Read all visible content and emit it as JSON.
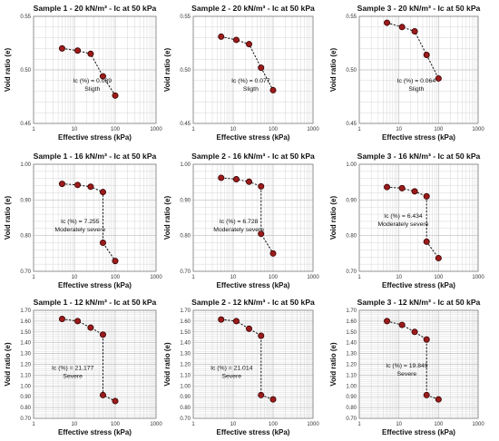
{
  "colors": {
    "marker": "#9b1b1b",
    "marker_edge": "#3a0000",
    "connector": "#111111",
    "grid": "#cccccc"
  },
  "chart_data": [
    {
      "type": "scatter",
      "title": "Sample 1 - 20 kN/m³ - Ic at 50 kPa",
      "xlabel": "Effective stress (kPa)",
      "ylabel": "Void ratio (e)",
      "xscale": "log",
      "xlim": [
        1,
        1000
      ],
      "ylim": [
        0.45,
        0.55
      ],
      "yticks": [
        0.45,
        0.5,
        0.55
      ],
      "ytick_decimals": 2,
      "grid": true,
      "x": [
        5,
        12,
        25,
        50,
        100
      ],
      "y": [
        0.52,
        0.518,
        0.515,
        0.494,
        0.476
      ],
      "annotation": [
        "Ic (%) = 0.039",
        "Sligth"
      ]
    },
    {
      "type": "scatter",
      "title": "Sample 2 - 20 kN/m³ - Ic at 50 kPa",
      "xlabel": "Effective stress (kPa)",
      "ylabel": "Void ratio (e)",
      "xscale": "log",
      "xlim": [
        1,
        1000
      ],
      "ylim": [
        0.45,
        0.55
      ],
      "yticks": [
        0.45,
        0.5,
        0.55
      ],
      "ytick_decimals": 2,
      "grid": true,
      "x": [
        5,
        12,
        25,
        50,
        100
      ],
      "y": [
        0.531,
        0.528,
        0.524,
        0.502,
        0.481
      ],
      "annotation": [
        "Ic (%) = 0.077",
        "Sligth"
      ]
    },
    {
      "type": "scatter",
      "title": "Sample 3 - 20 kN/m³ - Ic at 50 kPa",
      "xlabel": "Effective stress (kPa)",
      "ylabel": "Void ratio (e)",
      "xscale": "log",
      "xlim": [
        1,
        1000
      ],
      "ylim": [
        0.45,
        0.55
      ],
      "yticks": [
        0.45,
        0.5,
        0.55
      ],
      "ytick_decimals": 2,
      "grid": true,
      "x": [
        5,
        12,
        25,
        50,
        100
      ],
      "y": [
        0.544,
        0.54,
        0.536,
        0.514,
        0.492
      ],
      "annotation": [
        "Ic (%) = 0.064",
        "Sligth"
      ]
    },
    {
      "type": "scatter",
      "title": "Sample 1 - 16 kN/m³ - Ic at 50 kPa",
      "xlabel": "Effective stress (kPa)",
      "ylabel": "Void ratio (e)",
      "xscale": "log",
      "xlim": [
        1,
        1000
      ],
      "ylim": [
        0.7,
        1.0
      ],
      "yticks": [
        0.7,
        0.8,
        0.9,
        1.0
      ],
      "ytick_decimals": 2,
      "grid": true,
      "x": [
        5,
        12,
        25,
        50,
        50,
        100
      ],
      "y": [
        0.945,
        0.942,
        0.937,
        0.922,
        0.78,
        0.729
      ],
      "annotation": [
        "Ic (%) = 7.255",
        "Moderately severe"
      ]
    },
    {
      "type": "scatter",
      "title": "Sample 2 - 16 kN/m³ - Ic at 50 kPa",
      "xlabel": "Effective stress (kPa)",
      "ylabel": "Void ratio (e)",
      "xscale": "log",
      "xlim": [
        1,
        1000
      ],
      "ylim": [
        0.7,
        1.0
      ],
      "yticks": [
        0.7,
        0.8,
        0.9,
        1.0
      ],
      "ytick_decimals": 2,
      "grid": true,
      "x": [
        5,
        12,
        25,
        50,
        50,
        100
      ],
      "y": [
        0.962,
        0.958,
        0.951,
        0.938,
        0.805,
        0.75
      ],
      "annotation": [
        "Ic (%) = 6.728",
        "Moderately severe"
      ]
    },
    {
      "type": "scatter",
      "title": "Sample 3 - 16 kN/m³ - Ic at 50 kPa",
      "xlabel": "Effective stress (kPa)",
      "ylabel": "Void ratio (e)",
      "xscale": "log",
      "xlim": [
        1,
        1000
      ],
      "ylim": [
        0.7,
        1.0
      ],
      "yticks": [
        0.7,
        0.8,
        0.9,
        1.0
      ],
      "ytick_decimals": 2,
      "grid": true,
      "x": [
        5,
        12,
        25,
        50,
        50,
        100
      ],
      "y": [
        0.936,
        0.933,
        0.924,
        0.91,
        0.783,
        0.737
      ],
      "annotation": [
        "Ic (%) = 6.434",
        "Moderately severe"
      ]
    },
    {
      "type": "scatter",
      "title": "Sample 1 - 12 kN/m³ - Ic at 50 kPa",
      "xlabel": "Effective stress (kPa)",
      "ylabel": "Void ratio (e)",
      "xscale": "log",
      "xlim": [
        1,
        1000
      ],
      "ylim": [
        0.7,
        1.7
      ],
      "yticks": [
        0.7,
        0.8,
        0.9,
        1.0,
        1.1,
        1.2,
        1.3,
        1.4,
        1.5,
        1.6,
        1.7
      ],
      "ytick_decimals": 2,
      "grid": true,
      "x": [
        5,
        12,
        25,
        50,
        50,
        100
      ],
      "y": [
        1.62,
        1.6,
        1.54,
        1.475,
        0.915,
        0.86
      ],
      "annotation": [
        "Ic (%) = 21.177",
        "Severe"
      ]
    },
    {
      "type": "scatter",
      "title": "Sample 2 - 12 kN/m³ - Ic at 50 kPa",
      "xlabel": "Effective stress (kPa)",
      "ylabel": "Void ratio (e)",
      "xscale": "log",
      "xlim": [
        1,
        1000
      ],
      "ylim": [
        0.7,
        1.7
      ],
      "yticks": [
        0.7,
        0.8,
        0.9,
        1.0,
        1.1,
        1.2,
        1.3,
        1.4,
        1.5,
        1.6,
        1.7
      ],
      "ytick_decimals": 2,
      "grid": true,
      "x": [
        5,
        12,
        25,
        50,
        50,
        100
      ],
      "y": [
        1.615,
        1.6,
        1.53,
        1.465,
        0.915,
        0.875
      ],
      "annotation": [
        "Ic (%) = 21.014",
        "Severe"
      ]
    },
    {
      "type": "scatter",
      "title": "Sample 3 - 12 kN/m³ - Ic at 50 kPa",
      "xlabel": "Effective stress (kPa)",
      "ylabel": "Void ratio (e)",
      "xscale": "log",
      "xlim": [
        1,
        1000
      ],
      "ylim": [
        0.7,
        1.7
      ],
      "yticks": [
        0.7,
        0.8,
        0.9,
        1.0,
        1.1,
        1.2,
        1.3,
        1.4,
        1.5,
        1.6,
        1.7
      ],
      "ytick_decimals": 2,
      "grid": true,
      "x": [
        5,
        12,
        25,
        50,
        50,
        100
      ],
      "y": [
        1.6,
        1.565,
        1.5,
        1.43,
        0.915,
        0.875
      ],
      "annotation": [
        "Ic (%) = 19.849",
        "Severe"
      ]
    }
  ]
}
